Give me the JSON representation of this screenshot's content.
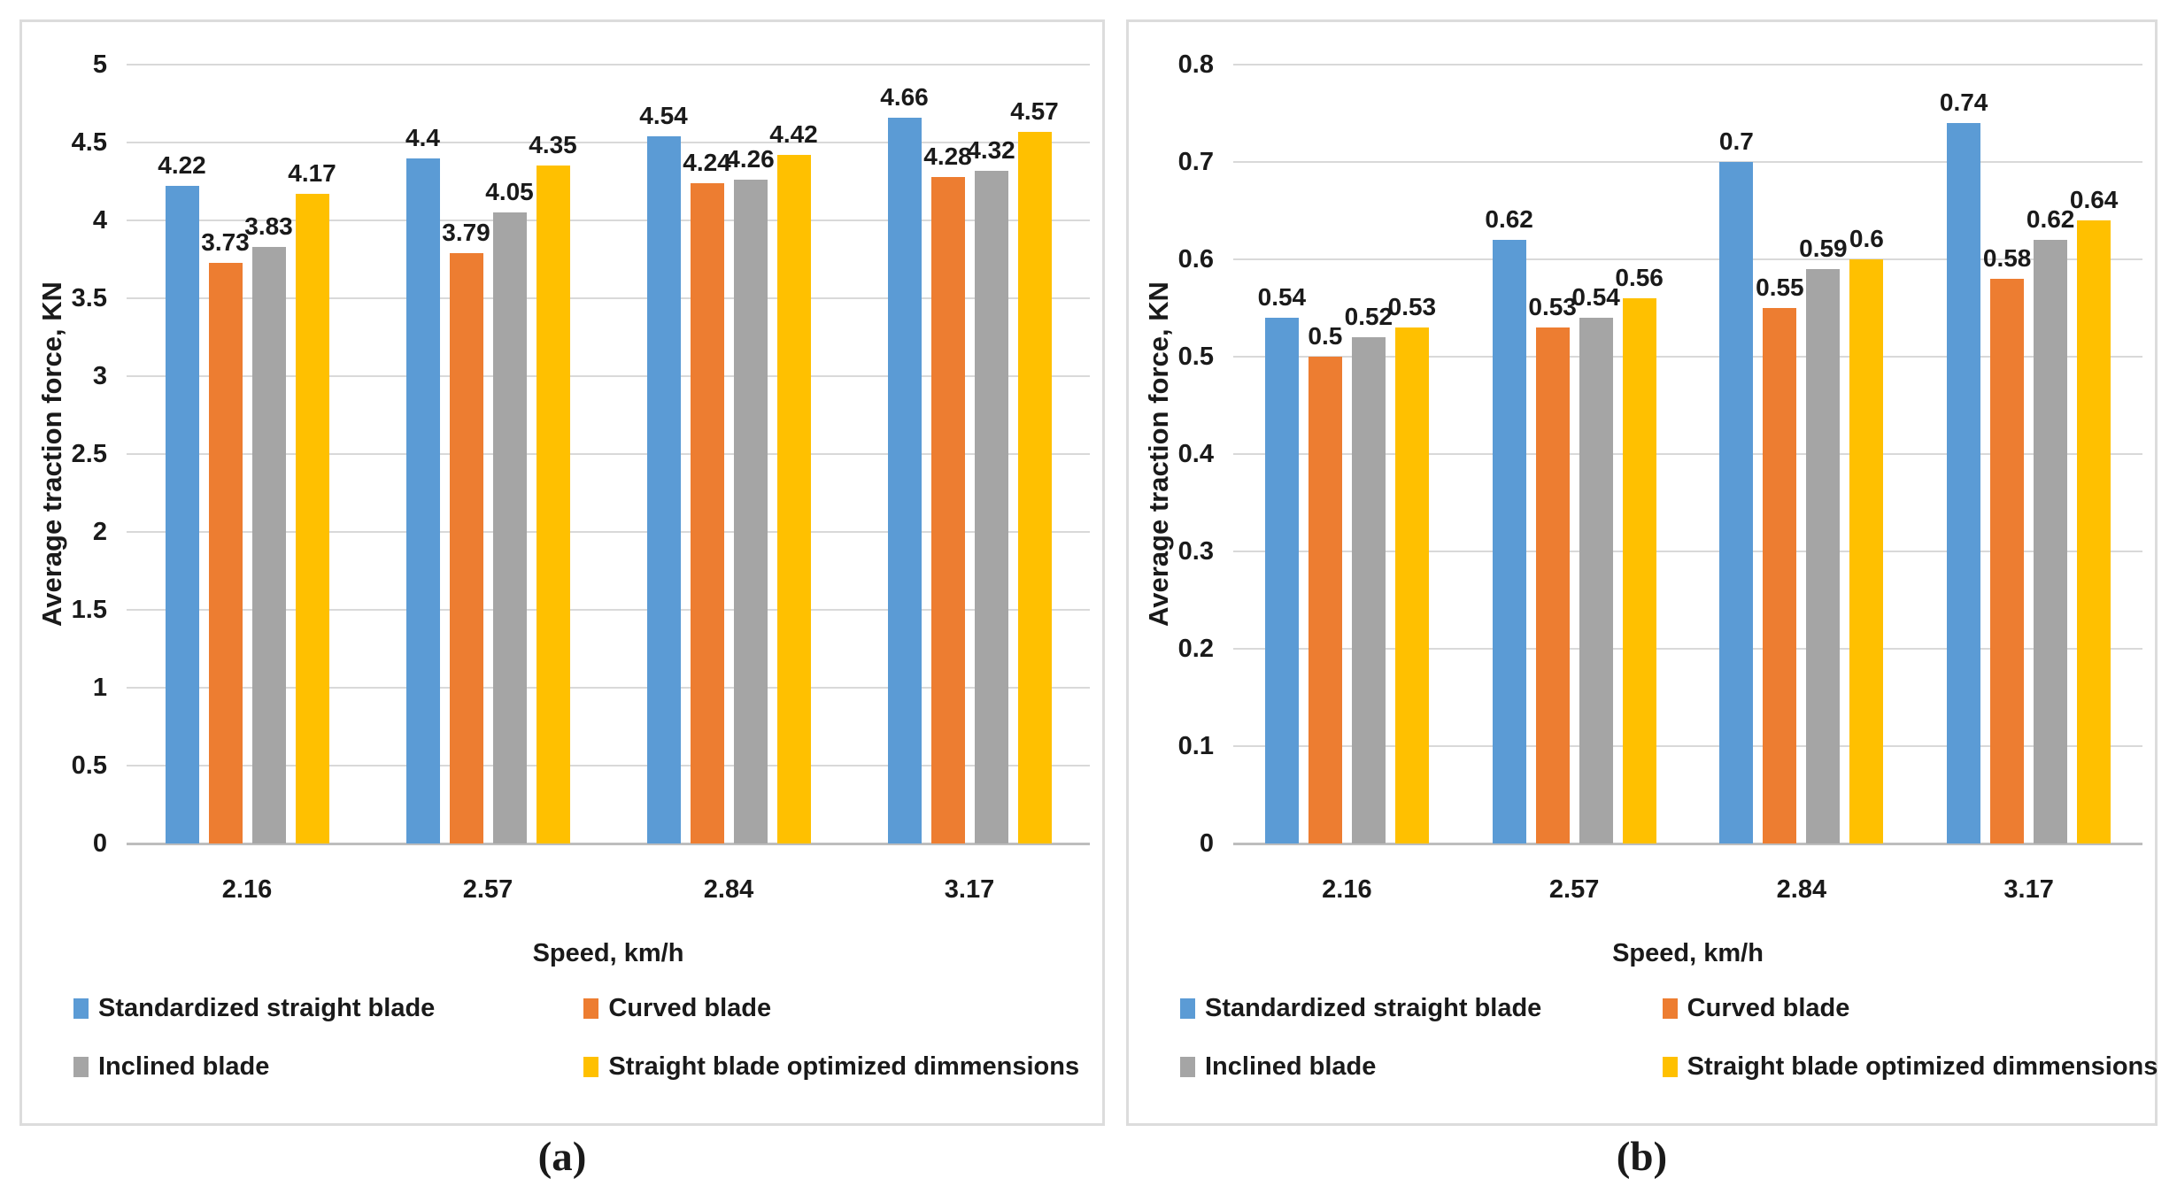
{
  "figure": {
    "caption_a": "(a)",
    "caption_b": "(b)"
  },
  "palette": {
    "blue": "#5B9BD5",
    "orange": "#ED7D31",
    "gray": "#A5A5A5",
    "yellow": "#FFC000",
    "gridline": "#D9D9D9",
    "axis_line": "#BDBDBD",
    "text": "#1A1A1A"
  },
  "chart_data": [
    {
      "id": "a",
      "type": "bar",
      "caption": "(a)",
      "title": "",
      "xlabel": "Speed, km/h",
      "ylabel": "Average traction force, KN",
      "ylim": [
        0,
        5
      ],
      "ytick_step": 0.5,
      "yticks": [
        "0",
        "0.5",
        "1",
        "1.5",
        "2",
        "2.5",
        "3",
        "3.5",
        "4",
        "4.5",
        "5"
      ],
      "categories": [
        "2.16",
        "2.57",
        "2.84",
        "3.17"
      ],
      "grid": true,
      "legend_position": "bottom",
      "series": [
        {
          "name": "Standardized straight blade",
          "color": "#5B9BD5",
          "values": [
            4.22,
            4.4,
            4.54,
            4.66
          ],
          "data_labels": [
            "4.22",
            "4.4",
            "4.54",
            "4.66"
          ]
        },
        {
          "name": "Curved blade",
          "color": "#ED7D31",
          "values": [
            3.73,
            3.79,
            4.24,
            4.28
          ],
          "data_labels": [
            "3.73",
            "3.79",
            "4.24",
            "4.28"
          ]
        },
        {
          "name": "Inclined blade",
          "color": "#A5A5A5",
          "values": [
            3.83,
            4.05,
            4.26,
            4.32
          ],
          "data_labels": [
            "3.83",
            "4.05",
            "4.26",
            "4.32"
          ]
        },
        {
          "name": "Straight blade optimized dimmensions",
          "color": "#FFC000",
          "values": [
            4.17,
            4.35,
            4.42,
            4.57
          ],
          "data_labels": [
            "4.17",
            "4.35",
            "4.42",
            "4.57"
          ]
        }
      ]
    },
    {
      "id": "b",
      "type": "bar",
      "caption": "(b)",
      "title": "",
      "xlabel": "Speed, km/h",
      "ylabel": "Average traction force, KN",
      "ylim": [
        0,
        0.8
      ],
      "ytick_step": 0.1,
      "yticks": [
        "0",
        "0.1",
        "0.2",
        "0.3",
        "0.4",
        "0.5",
        "0.6",
        "0.7",
        "0.8"
      ],
      "categories": [
        "2.16",
        "2.57",
        "2.84",
        "3.17"
      ],
      "grid": true,
      "legend_position": "bottom",
      "series": [
        {
          "name": "Standardized straight blade",
          "color": "#5B9BD5",
          "values": [
            0.54,
            0.62,
            0.7,
            0.74
          ],
          "data_labels": [
            "0.54",
            "0.62",
            "0.7",
            "0.74"
          ]
        },
        {
          "name": "Curved blade",
          "color": "#ED7D31",
          "values": [
            0.5,
            0.53,
            0.55,
            0.58
          ],
          "data_labels": [
            "0.5",
            "0.53",
            "0.55",
            "0.58"
          ]
        },
        {
          "name": "Inclined blade",
          "color": "#A5A5A5",
          "values": [
            0.52,
            0.54,
            0.59,
            0.62
          ],
          "data_labels": [
            "0.52",
            "0.54",
            "0.59",
            "0.62"
          ]
        },
        {
          "name": "Straight blade optimized dimmensions",
          "color": "#FFC000",
          "values": [
            0.53,
            0.56,
            0.6,
            0.64
          ],
          "data_labels": [
            "0.53",
            "0.56",
            "0.6",
            "0.64"
          ]
        }
      ]
    }
  ]
}
